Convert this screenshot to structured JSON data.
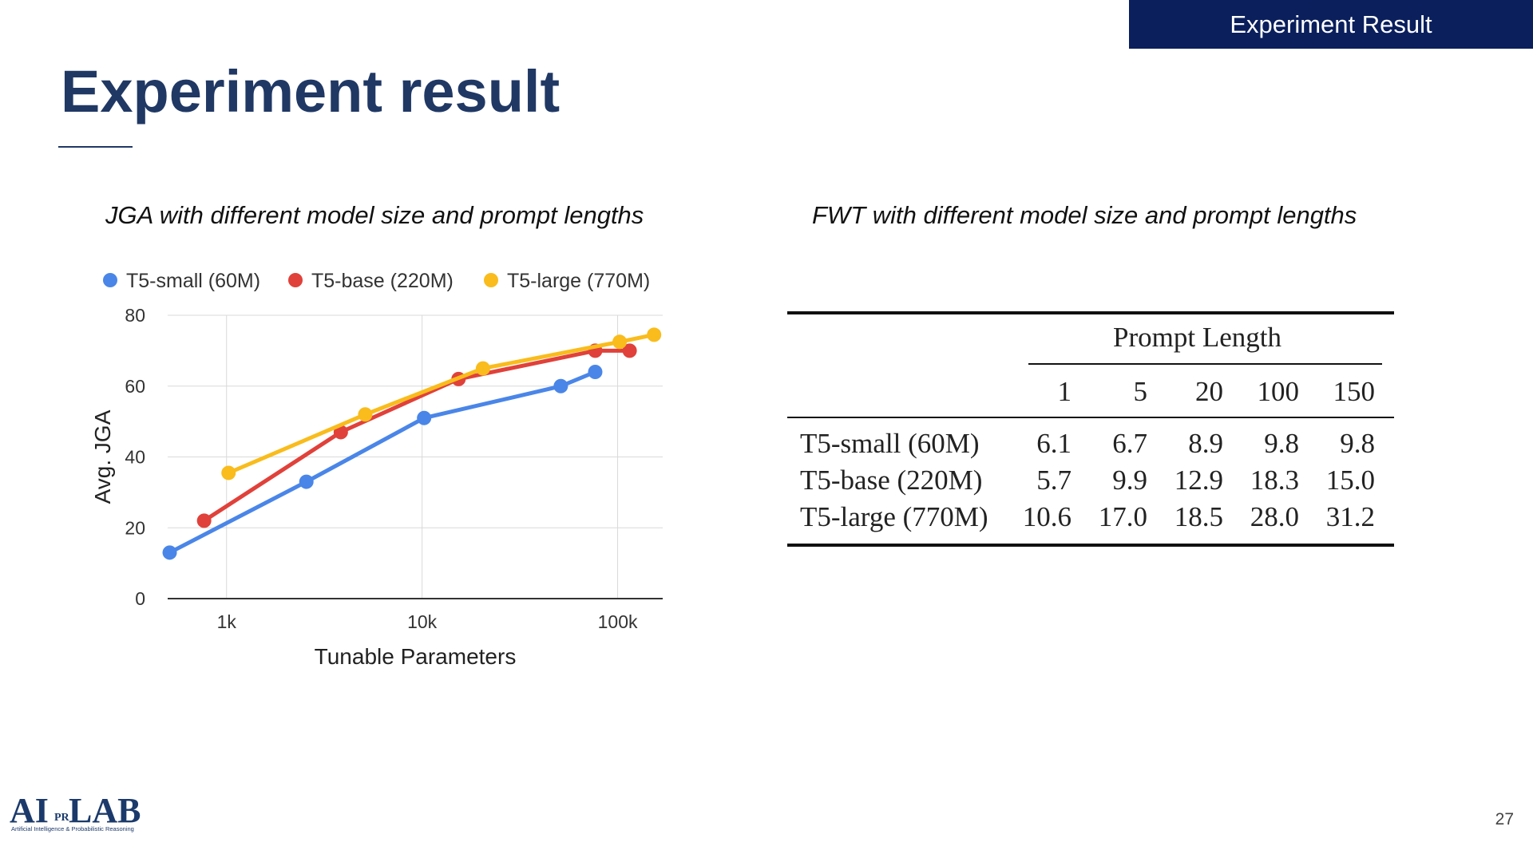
{
  "header": {
    "section_label": "Experiment Result",
    "title": "Experiment result",
    "page_number": "27"
  },
  "chart_caption": "JGA with different model size and prompt lengths",
  "table_caption": "FWT with different model size and prompt lengths",
  "chart_data": {
    "type": "line",
    "xlabel": "Tunable Parameters",
    "ylabel": "Avg. JGA",
    "x_scale": "log",
    "xlim": [
      500,
      170000
    ],
    "ylim": [
      0,
      80
    ],
    "x_ticks": [
      {
        "value": 1000,
        "label": "1k"
      },
      {
        "value": 10000,
        "label": "10k"
      },
      {
        "value": 100000,
        "label": "100k"
      }
    ],
    "y_ticks": [
      0,
      20,
      40,
      60,
      80
    ],
    "grid": true,
    "legend_position": "top",
    "series": [
      {
        "name": "T5-small (60M)",
        "color": "#4a86e8",
        "points": [
          [
            512,
            13
          ],
          [
            2560,
            33
          ],
          [
            10240,
            51
          ],
          [
            51200,
            60
          ],
          [
            76800,
            64
          ]
        ]
      },
      {
        "name": "T5-base (220M)",
        "color": "#e0413a",
        "points": [
          [
            768,
            22
          ],
          [
            3840,
            47
          ],
          [
            15360,
            62
          ],
          [
            76800,
            70
          ],
          [
            115200,
            70
          ]
        ]
      },
      {
        "name": "T5-large (770M)",
        "color": "#f9bc1c",
        "points": [
          [
            1024,
            35.5
          ],
          [
            5120,
            52
          ],
          [
            20480,
            65
          ],
          [
            102400,
            72.5
          ],
          [
            153600,
            74.5
          ]
        ]
      }
    ]
  },
  "table": {
    "group_header": "Prompt Length",
    "columns": [
      "1",
      "5",
      "20",
      "100",
      "150"
    ],
    "rows": [
      {
        "label": "T5-small (60M)",
        "values": [
          "6.1",
          "6.7",
          "8.9",
          "9.8",
          "9.8"
        ]
      },
      {
        "label": "T5-base (220M)",
        "values": [
          "5.7",
          "9.9",
          "12.9",
          "18.3",
          "15.0"
        ]
      },
      {
        "label": "T5-large (770M)",
        "values": [
          "10.6",
          "17.0",
          "18.5",
          "28.0",
          "31.2"
        ]
      }
    ]
  },
  "logo": {
    "name": "AILAB",
    "text_main": "AI",
    "text_mid": "PR",
    "text_end": "LAB",
    "tagline": "Artificial Intelligence & Probabilistic Reasoning",
    "color": "#1b3a6b"
  }
}
